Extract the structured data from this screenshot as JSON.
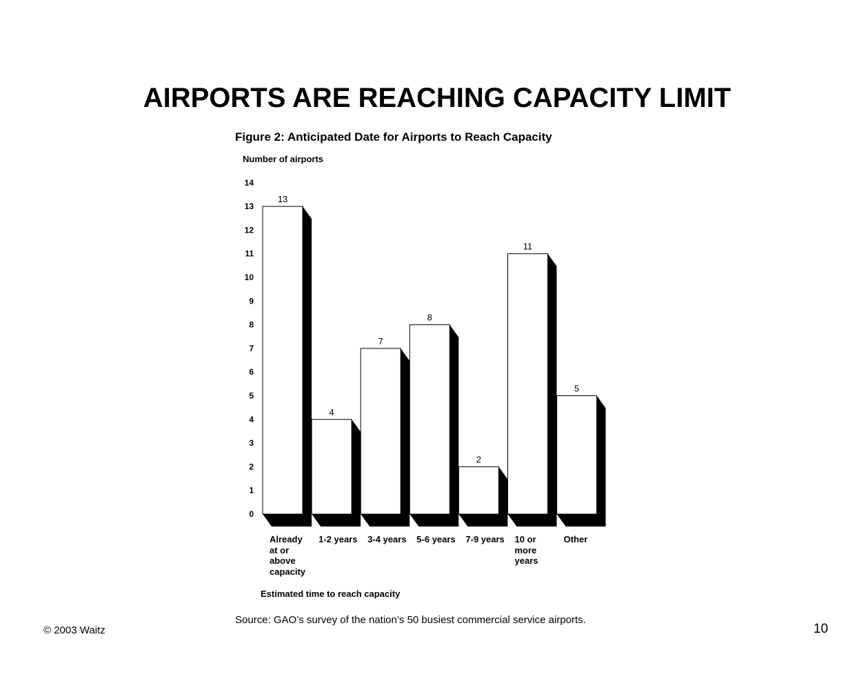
{
  "slide": {
    "title": "AIRPORTS ARE REACHING CAPACITY LIMIT",
    "copyright": "© 2003 Waitz",
    "page_number": "10",
    "source": "Source: GAO’s survey of the nation’s 50 busiest commercial service airports."
  },
  "chart_data": {
    "type": "bar",
    "title": "Figure 2:  Anticipated Date for Airports to Reach Capacity",
    "ylabel": "Number of airports",
    "xlabel": "Estimated time to reach capacity",
    "categories": [
      "Already at or above capacity",
      "1-2 years",
      "3-4 years",
      "5-6 years",
      "7-9 years",
      "10 or more years",
      "Other"
    ],
    "category_lines": [
      [
        "Already",
        "at or",
        "above",
        "capacity"
      ],
      [
        "1-2 years"
      ],
      [
        "3-4 years"
      ],
      [
        "5-6 years"
      ],
      [
        "7-9 years"
      ],
      [
        "10 or",
        "more",
        "years"
      ],
      [
        "Other"
      ]
    ],
    "values": [
      13,
      4,
      7,
      8,
      2,
      11,
      5
    ],
    "ylim": [
      0,
      14
    ],
    "yticks": [
      0,
      1,
      2,
      3,
      4,
      5,
      6,
      7,
      8,
      9,
      10,
      11,
      12,
      13,
      14
    ],
    "data_labels": true,
    "grid": false,
    "bar_fill": "#ffffff",
    "shadow_color": "#000000"
  }
}
